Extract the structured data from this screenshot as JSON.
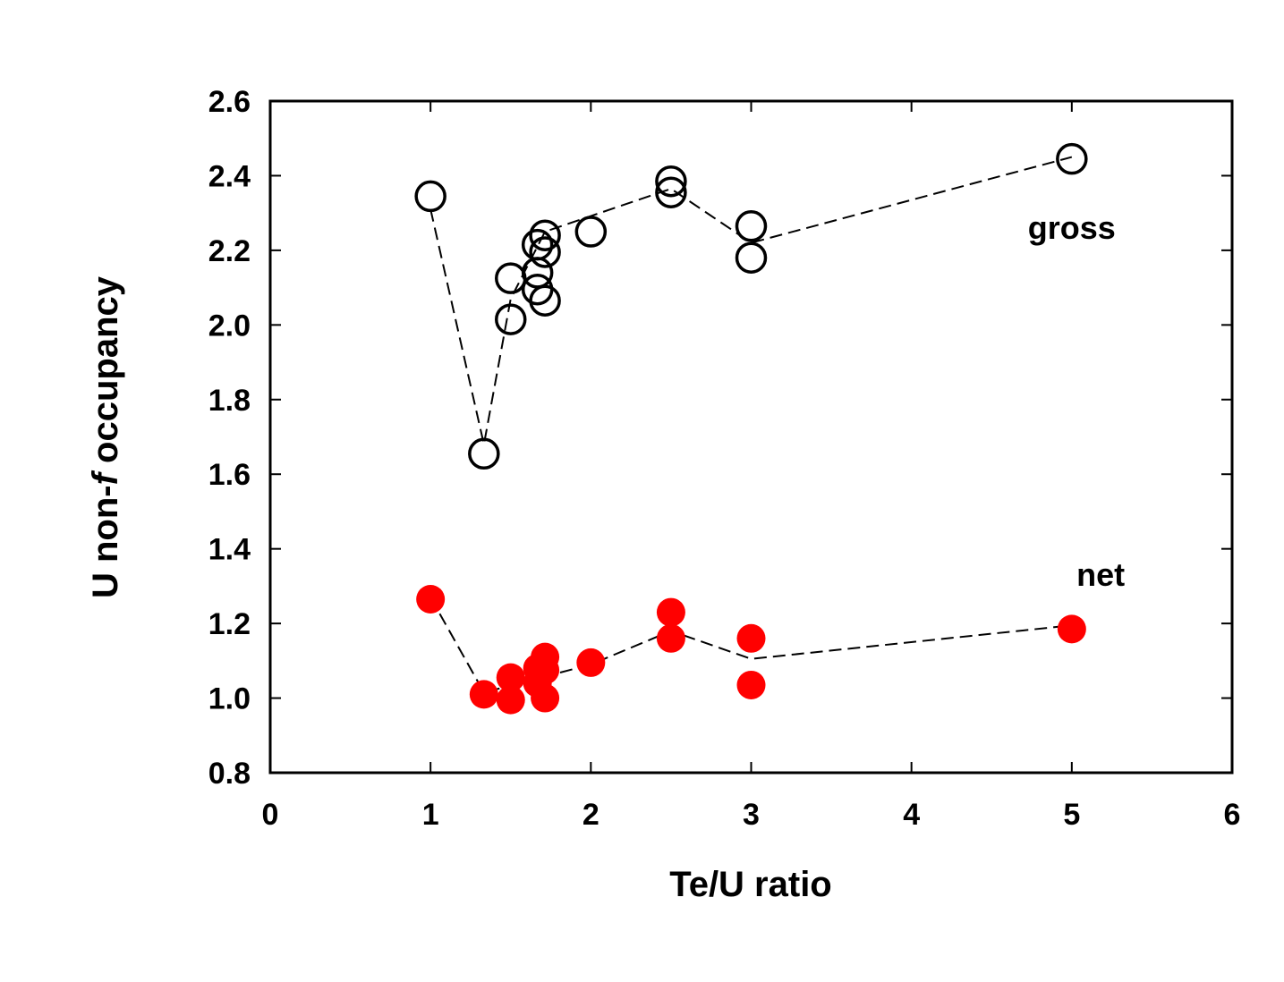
{
  "chart_data": {
    "type": "scatter",
    "title": "",
    "xlabel": "Te/U ratio",
    "ylabel_parts": [
      "U non-",
      "f",
      " occupancy"
    ],
    "xlim": [
      0,
      6
    ],
    "ylim": [
      0.8,
      2.6
    ],
    "x_ticks": [
      "0",
      "1",
      "2",
      "3",
      "4",
      "5",
      "6"
    ],
    "y_ticks": [
      "0.8",
      "1.0",
      "1.2",
      "1.4",
      "1.6",
      "1.8",
      "2.0",
      "2.2",
      "2.4",
      "2.6"
    ],
    "grid": false,
    "annotations": [
      {
        "text": "gross",
        "x": 5.0,
        "y": 2.26
      },
      {
        "text": "net",
        "x": 5.18,
        "y": 1.33
      }
    ],
    "series": [
      {
        "key": "gross",
        "marker": "open-circle",
        "color": "#000000",
        "points": [
          {
            "x": 1.0,
            "y": 2.345
          },
          {
            "x": 1.333,
            "y": 1.655
          },
          {
            "x": 1.5,
            "y": 2.125
          },
          {
            "x": 1.5,
            "y": 2.015
          },
          {
            "x": 1.667,
            "y": 2.215
          },
          {
            "x": 1.667,
            "y": 2.14
          },
          {
            "x": 1.667,
            "y": 2.095
          },
          {
            "x": 1.714,
            "y": 2.24
          },
          {
            "x": 1.714,
            "y": 2.195
          },
          {
            "x": 1.714,
            "y": 2.065
          },
          {
            "x": 2.0,
            "y": 2.25
          },
          {
            "x": 2.5,
            "y": 2.385
          },
          {
            "x": 2.5,
            "y": 2.355
          },
          {
            "x": 3.0,
            "y": 2.265
          },
          {
            "x": 3.0,
            "y": 2.18
          },
          {
            "x": 5.0,
            "y": 2.445
          }
        ],
        "trend": [
          {
            "x": 1.0,
            "y": 2.31
          },
          {
            "x": 1.333,
            "y": 1.68
          },
          {
            "x": 1.5,
            "y": 2.07
          },
          {
            "x": 1.714,
            "y": 2.25
          },
          {
            "x": 2.5,
            "y": 2.365
          },
          {
            "x": 3.0,
            "y": 2.22
          },
          {
            "x": 5.0,
            "y": 2.45
          }
        ]
      },
      {
        "key": "net",
        "marker": "filled-circle",
        "color": "#ff0000",
        "points": [
          {
            "x": 1.0,
            "y": 1.265
          },
          {
            "x": 1.333,
            "y": 1.01
          },
          {
            "x": 1.5,
            "y": 1.055
          },
          {
            "x": 1.5,
            "y": 0.995
          },
          {
            "x": 1.667,
            "y": 1.08
          },
          {
            "x": 1.667,
            "y": 1.04
          },
          {
            "x": 1.714,
            "y": 1.11
          },
          {
            "x": 1.714,
            "y": 1.075
          },
          {
            "x": 1.714,
            "y": 1.0
          },
          {
            "x": 2.0,
            "y": 1.095
          },
          {
            "x": 2.5,
            "y": 1.23
          },
          {
            "x": 2.5,
            "y": 1.16
          },
          {
            "x": 3.0,
            "y": 1.16
          },
          {
            "x": 3.0,
            "y": 1.035
          },
          {
            "x": 5.0,
            "y": 1.185
          }
        ],
        "trend": [
          {
            "x": 1.0,
            "y": 1.27
          },
          {
            "x": 1.333,
            "y": 1.015
          },
          {
            "x": 2.0,
            "y": 1.09
          },
          {
            "x": 2.5,
            "y": 1.18
          },
          {
            "x": 3.0,
            "y": 1.105
          },
          {
            "x": 5.0,
            "y": 1.195
          }
        ]
      }
    ]
  }
}
